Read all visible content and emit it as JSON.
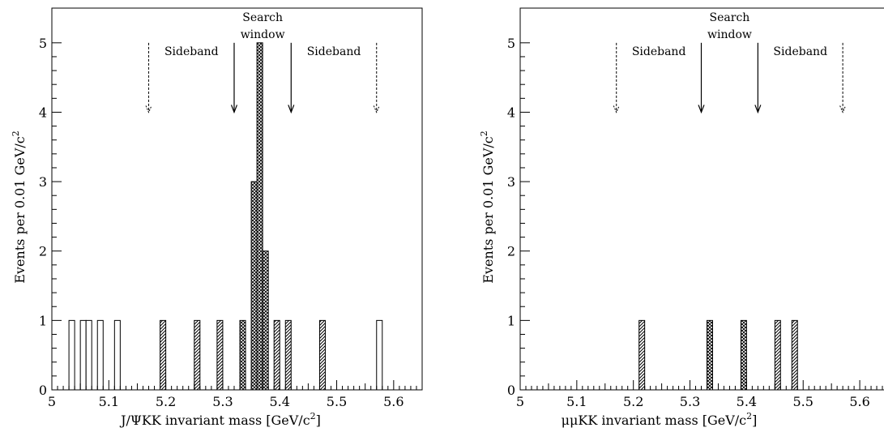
{
  "chart_data": [
    {
      "type": "bar",
      "title": "",
      "xlabel": "J/ΨKK invariant mass [GeV/c",
      "xlabel_sup": "2",
      "xlabel_end": "]",
      "ylabel": "Events per 0.01 GeV/c",
      "ylabel_sup": "2",
      "xlim": [
        5.0,
        5.65
      ],
      "ylim": [
        0,
        5.5
      ],
      "bin_width": 0.01,
      "x_ticks": [
        "5",
        "5.1",
        "5.2",
        "5.3",
        "5.4",
        "5.5",
        "5.6"
      ],
      "y_ticks": [
        "0",
        "1",
        "2",
        "3",
        "4",
        "5"
      ],
      "annotations": {
        "search_window_line1": "Search",
        "search_window_line2": "window",
        "sideband_left": "Sideband",
        "sideband_right": "Sideband"
      },
      "arrows": {
        "solid_x": [
          5.32,
          5.42
        ],
        "dashed_x": [
          5.17,
          5.57
        ],
        "solid_top_y": 5.0,
        "dashed_top_y": 5.0,
        "bottom_y": 4.0
      },
      "bins": [
        {
          "x": 5.03,
          "y": 1,
          "fill": "open"
        },
        {
          "x": 5.05,
          "y": 1,
          "fill": "open"
        },
        {
          "x": 5.06,
          "y": 1,
          "fill": "open"
        },
        {
          "x": 5.08,
          "y": 1,
          "fill": "open"
        },
        {
          "x": 5.11,
          "y": 1,
          "fill": "open"
        },
        {
          "x": 5.19,
          "y": 1,
          "fill": "hatch"
        },
        {
          "x": 5.25,
          "y": 1,
          "fill": "hatch"
        },
        {
          "x": 5.29,
          "y": 1,
          "fill": "hatch"
        },
        {
          "x": 5.33,
          "y": 1,
          "fill": "cross"
        },
        {
          "x": 5.35,
          "y": 3,
          "fill": "cross"
        },
        {
          "x": 5.36,
          "y": 5,
          "fill": "cross"
        },
        {
          "x": 5.37,
          "y": 2,
          "fill": "cross"
        },
        {
          "x": 5.39,
          "y": 1,
          "fill": "hatch"
        },
        {
          "x": 5.41,
          "y": 1,
          "fill": "hatch"
        },
        {
          "x": 5.47,
          "y": 1,
          "fill": "hatch"
        },
        {
          "x": 5.57,
          "y": 1,
          "fill": "open"
        }
      ]
    },
    {
      "type": "bar",
      "title": "",
      "xlabel": "μμKK invariant mass [GeV/c",
      "xlabel_sup": "2",
      "xlabel_end": "]",
      "ylabel": "Events per 0.01 GeV/c",
      "ylabel_sup": "2",
      "xlim": [
        5.0,
        5.65
      ],
      "ylim": [
        0,
        5.5
      ],
      "bin_width": 0.01,
      "x_ticks": [
        "5",
        "5.1",
        "5.2",
        "5.3",
        "5.4",
        "5.5",
        "5.6"
      ],
      "y_ticks": [
        "0",
        "1",
        "2",
        "3",
        "4",
        "5"
      ],
      "annotations": {
        "search_window_line1": "Search",
        "search_window_line2": "window",
        "sideband_left": "Sideband",
        "sideband_right": "Sideband"
      },
      "arrows": {
        "solid_x": [
          5.32,
          5.42
        ],
        "dashed_x": [
          5.17,
          5.57
        ],
        "solid_top_y": 5.0,
        "dashed_top_y": 5.0,
        "bottom_y": 4.0
      },
      "bins": [
        {
          "x": 5.21,
          "y": 1,
          "fill": "hatch"
        },
        {
          "x": 5.33,
          "y": 1,
          "fill": "cross"
        },
        {
          "x": 5.39,
          "y": 1,
          "fill": "cross"
        },
        {
          "x": 5.45,
          "y": 1,
          "fill": "hatch"
        },
        {
          "x": 5.48,
          "y": 1,
          "fill": "hatch"
        }
      ]
    }
  ]
}
